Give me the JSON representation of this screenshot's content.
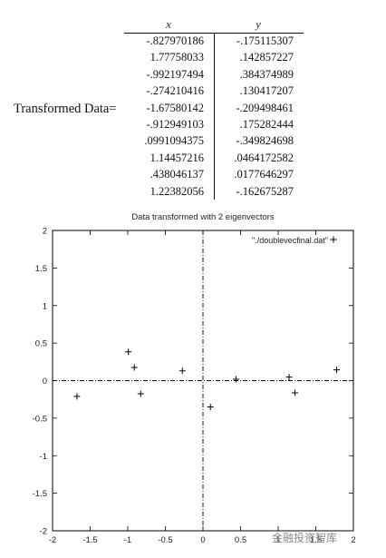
{
  "table": {
    "label": "Transformed Data=",
    "headers": [
      "x",
      "y"
    ],
    "rows": [
      [
        "-.827970186",
        "-.175115307"
      ],
      [
        "1.77758033",
        ".142857227"
      ],
      [
        "-.992197494",
        ".384374989"
      ],
      [
        "-.274210416",
        ".130417207"
      ],
      [
        "-1.67580142",
        "-.209498461"
      ],
      [
        "-.912949103",
        ".175282444"
      ],
      [
        ".0991094375",
        "-.349824698"
      ],
      [
        "1.14457216",
        ".0464172582"
      ],
      [
        ".438046137",
        ".0177646297"
      ],
      [
        "1.22382056",
        "-.162675287"
      ]
    ]
  },
  "chart_data": {
    "type": "scatter",
    "title": "Data transformed with 2 eigenvectors",
    "legend": "\"./doublevecfinal.dat\"",
    "legend_position": "top-right",
    "marker": "+",
    "xlim": [
      -2,
      2
    ],
    "ylim": [
      -2,
      2
    ],
    "xticks": [
      -2,
      -1.5,
      -1,
      -0.5,
      0,
      0.5,
      1,
      1.5,
      2
    ],
    "xtick_labels": [
      "-2",
      "-1.5",
      "-1",
      "-0.5",
      "0",
      "0.5",
      "1",
      "1.5",
      "2"
    ],
    "yticks": [
      -2,
      -1.5,
      -1,
      -0.5,
      0,
      0.5,
      1,
      1.5,
      2
    ],
    "ytick_labels": [
      "-2",
      "-1.5",
      "-1",
      "-0.5",
      "0",
      "0.5",
      "1",
      "1.5",
      "2"
    ],
    "grid": false,
    "zero_axes": true,
    "points": [
      [
        -0.827970186,
        -0.175115307
      ],
      [
        1.77758033,
        0.142857227
      ],
      [
        -0.992197494,
        0.384374989
      ],
      [
        -0.274210416,
        0.130417207
      ],
      [
        -1.67580142,
        -0.209498461
      ],
      [
        -0.912949103,
        0.175282444
      ],
      [
        0.0991094375,
        -0.349824698
      ],
      [
        1.14457216,
        0.0464172582
      ],
      [
        0.438046137,
        0.0177646297
      ],
      [
        1.22382056,
        -0.162675287
      ]
    ]
  },
  "watermark": "金融投资智库"
}
